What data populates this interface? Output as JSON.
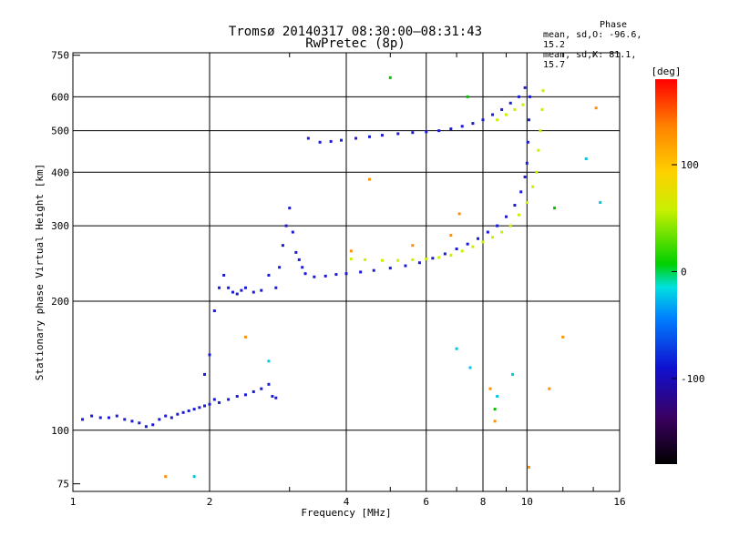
{
  "header": {
    "title_line1": "Tromsø 20140317 08:30:00–08:31:43",
    "title_line2": "RwPretec (8p)"
  },
  "phase_panel": {
    "heading": "Phase",
    "line_o": "mean, sd,O: -96.6, 15.2",
    "line_x": "mean, sd,X:  81.1, 15.7"
  },
  "colorbar": {
    "unit": "[deg]",
    "ticks": [
      {
        "value": 100,
        "label": "100"
      },
      {
        "value": 0,
        "label": "0"
      },
      {
        "value": -100,
        "label": "-100"
      }
    ],
    "range": [
      -180,
      180
    ],
    "colors": [
      "#000000",
      "#3a0060",
      "#1010d0",
      "#00b0ff",
      "#00e0c0",
      "#00d000",
      "#c8f000",
      "#ffd000",
      "#ff8000",
      "#ff0000"
    ]
  },
  "chart_data": {
    "type": "scatter",
    "title": "Tromsø 20140317 08:30:00–08:31:43",
    "subtitle": "RwPretec (8p)",
    "xlabel": "Frequency [MHz]",
    "ylabel": "Stationary phase Virtual Height [km]",
    "x_scale": "log",
    "y_scale": "log",
    "xlim": [
      1,
      16
    ],
    "ylim": [
      72,
      760
    ],
    "x_ticks": [
      1,
      2,
      4,
      6,
      8,
      10,
      16
    ],
    "x_tick_labels": [
      "1",
      "2",
      "4",
      "6",
      "8",
      "10",
      "16"
    ],
    "y_ticks": [
      75,
      100,
      200,
      300,
      400,
      500,
      600,
      750
    ],
    "y_tick_labels": [
      "75",
      "100",
      "200",
      "300",
      "400",
      "500",
      "600",
      "750"
    ],
    "grid": true,
    "series": [
      {
        "color": "#1a1ad8",
        "points": [
          [
            1.05,
            106
          ],
          [
            1.1,
            108
          ],
          [
            1.15,
            107
          ],
          [
            1.2,
            107
          ],
          [
            1.25,
            108
          ],
          [
            1.3,
            106
          ],
          [
            1.35,
            105
          ],
          [
            1.4,
            104
          ],
          [
            1.45,
            102
          ],
          [
            1.5,
            103
          ],
          [
            1.55,
            106
          ],
          [
            1.6,
            108
          ],
          [
            1.65,
            107
          ],
          [
            1.7,
            109
          ],
          [
            1.75,
            110
          ],
          [
            1.8,
            111
          ],
          [
            1.85,
            112
          ],
          [
            1.9,
            113
          ],
          [
            1.95,
            114
          ],
          [
            2.0,
            115
          ],
          [
            2.05,
            118
          ],
          [
            2.1,
            116
          ],
          [
            2.2,
            118
          ],
          [
            2.3,
            120
          ],
          [
            2.4,
            121
          ],
          [
            2.5,
            123
          ],
          [
            2.6,
            125
          ],
          [
            2.7,
            128
          ],
          [
            2.75,
            120
          ],
          [
            2.8,
            119
          ],
          [
            1.95,
            135
          ],
          [
            2.0,
            150
          ],
          [
            2.05,
            190
          ],
          [
            2.1,
            215
          ],
          [
            2.15,
            230
          ],
          [
            2.2,
            215
          ],
          [
            2.25,
            210
          ],
          [
            2.3,
            208
          ],
          [
            2.35,
            212
          ],
          [
            2.4,
            215
          ],
          [
            2.5,
            210
          ],
          [
            2.6,
            212
          ],
          [
            2.7,
            230
          ],
          [
            2.8,
            215
          ],
          [
            2.85,
            240
          ],
          [
            2.9,
            270
          ],
          [
            2.95,
            300
          ],
          [
            3.0,
            330
          ],
          [
            3.05,
            290
          ],
          [
            3.1,
            260
          ],
          [
            3.15,
            250
          ],
          [
            3.2,
            240
          ],
          [
            3.25,
            232
          ],
          [
            3.4,
            228
          ],
          [
            3.6,
            229
          ],
          [
            3.8,
            231
          ],
          [
            4.0,
            232
          ],
          [
            4.3,
            234
          ],
          [
            4.6,
            236
          ],
          [
            5.0,
            239
          ],
          [
            5.4,
            242
          ],
          [
            5.8,
            246
          ],
          [
            6.2,
            252
          ],
          [
            6.6,
            258
          ],
          [
            7.0,
            265
          ],
          [
            7.4,
            272
          ],
          [
            7.8,
            280
          ],
          [
            8.2,
            290
          ],
          [
            8.6,
            300
          ],
          [
            9.0,
            315
          ],
          [
            9.4,
            335
          ],
          [
            9.7,
            360
          ],
          [
            9.9,
            390
          ],
          [
            10.0,
            420
          ],
          [
            10.05,
            470
          ],
          [
            10.1,
            530
          ],
          [
            10.15,
            600
          ],
          [
            3.3,
            480
          ],
          [
            3.5,
            470
          ],
          [
            3.7,
            472
          ],
          [
            3.9,
            475
          ],
          [
            4.2,
            480
          ],
          [
            4.5,
            484
          ],
          [
            4.8,
            488
          ],
          [
            5.2,
            492
          ],
          [
            5.6,
            495
          ],
          [
            6.0,
            497
          ],
          [
            6.4,
            500
          ],
          [
            6.8,
            505
          ],
          [
            7.2,
            512
          ],
          [
            7.6,
            520
          ],
          [
            8.0,
            530
          ],
          [
            8.4,
            545
          ],
          [
            8.8,
            560
          ],
          [
            9.2,
            580
          ],
          [
            9.6,
            600
          ],
          [
            9.9,
            630
          ]
        ]
      },
      {
        "color": "#c8f000",
        "points": [
          [
            4.1,
            251
          ],
          [
            4.4,
            250
          ],
          [
            4.8,
            249
          ],
          [
            5.2,
            249
          ],
          [
            5.6,
            250
          ],
          [
            6.0,
            251
          ],
          [
            6.4,
            253
          ],
          [
            6.8,
            256
          ],
          [
            7.2,
            262
          ],
          [
            7.6,
            268
          ],
          [
            8.0,
            275
          ],
          [
            8.4,
            282
          ],
          [
            8.8,
            290
          ],
          [
            9.2,
            300
          ],
          [
            9.6,
            318
          ],
          [
            10.0,
            340
          ],
          [
            10.3,
            370
          ],
          [
            10.5,
            400
          ],
          [
            10.6,
            450
          ],
          [
            10.7,
            500
          ],
          [
            10.8,
            560
          ],
          [
            10.85,
            620
          ],
          [
            8.6,
            530
          ],
          [
            9.0,
            545
          ],
          [
            9.4,
            560
          ],
          [
            9.8,
            575
          ]
        ]
      },
      {
        "color": "#ff9000",
        "points": [
          [
            1.6,
            78
          ],
          [
            2.4,
            165
          ],
          [
            4.1,
            262
          ],
          [
            4.5,
            385
          ],
          [
            5.6,
            270
          ],
          [
            7.1,
            320
          ],
          [
            8.3,
            125
          ],
          [
            8.5,
            105
          ],
          [
            11.2,
            125
          ],
          [
            12.0,
            165
          ],
          [
            14.2,
            565
          ],
          [
            10.1,
            82
          ],
          [
            6.8,
            285
          ]
        ]
      },
      {
        "color": "#00c8e0",
        "points": [
          [
            1.85,
            78
          ],
          [
            2.7,
            145
          ],
          [
            7.0,
            155
          ],
          [
            7.5,
            140
          ],
          [
            8.6,
            120
          ],
          [
            9.3,
            135
          ],
          [
            13.5,
            430
          ],
          [
            14.5,
            340
          ]
        ]
      },
      {
        "color": "#00c000",
        "points": [
          [
            5.0,
            665
          ],
          [
            8.5,
            112
          ],
          [
            11.5,
            330
          ],
          [
            7.4,
            600
          ]
        ]
      }
    ]
  }
}
